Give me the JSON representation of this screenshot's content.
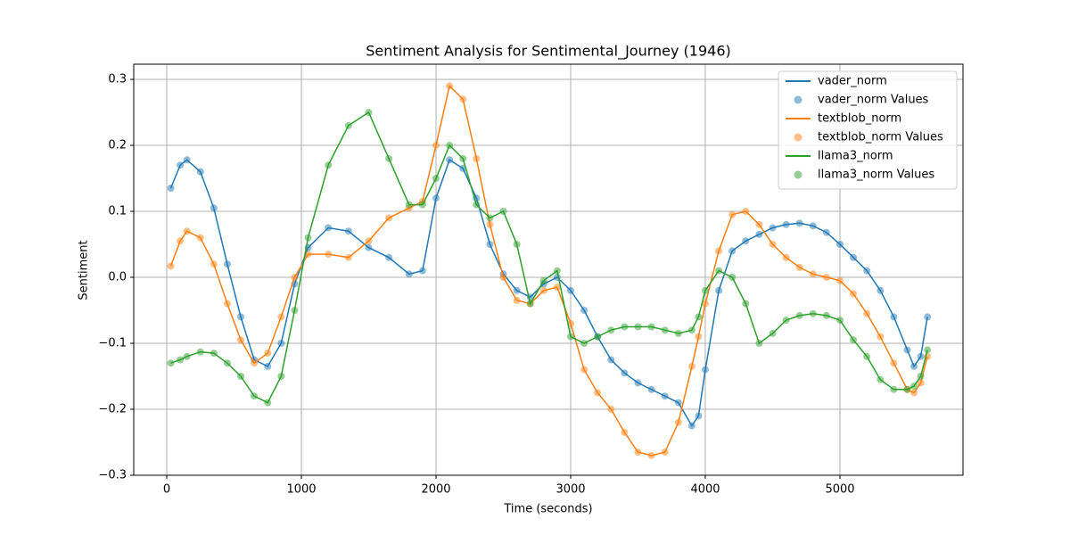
{
  "chart_data": {
    "type": "line",
    "title": "Sentiment Analysis for Sentimental_Journey (1946)",
    "x_label": "Time (seconds)",
    "y_label": "Sentiment",
    "x": [
      30,
      100,
      150,
      250,
      350,
      450,
      550,
      650,
      750,
      850,
      950,
      1050,
      1200,
      1350,
      1500,
      1650,
      1800,
      1900,
      2000,
      2100,
      2200,
      2300,
      2400,
      2500,
      2600,
      2700,
      2800,
      2900,
      3000,
      3100,
      3200,
      3300,
      3400,
      3500,
      3600,
      3700,
      3800,
      3900,
      3950,
      4000,
      4100,
      4200,
      4300,
      4400,
      4500,
      4600,
      4700,
      4800,
      4900,
      5000,
      5100,
      5200,
      5300,
      5400,
      5500,
      5550,
      5600,
      5650
    ],
    "series": [
      {
        "name": "vader_norm",
        "scatter_label": "vader_norm Values",
        "color": "#1f77b4",
        "values": [
          0.135,
          0.17,
          0.178,
          0.16,
          0.105,
          0.02,
          -0.06,
          -0.125,
          -0.135,
          -0.1,
          -0.01,
          0.045,
          0.075,
          0.07,
          0.045,
          0.03,
          0.005,
          0.01,
          0.12,
          0.178,
          0.165,
          0.12,
          0.05,
          0.005,
          -0.02,
          -0.03,
          -0.01,
          0.0,
          -0.02,
          -0.05,
          -0.09,
          -0.125,
          -0.145,
          -0.16,
          -0.17,
          -0.18,
          -0.19,
          -0.225,
          -0.21,
          -0.14,
          -0.02,
          0.04,
          0.055,
          0.065,
          0.075,
          0.08,
          0.082,
          0.078,
          0.068,
          0.05,
          0.03,
          0.01,
          -0.02,
          -0.06,
          -0.11,
          -0.135,
          -0.12,
          -0.06
        ]
      },
      {
        "name": "textblob_norm",
        "scatter_label": "textblob_norm Values",
        "color": "#ff7f0e",
        "values": [
          0.017,
          0.055,
          0.07,
          0.06,
          0.02,
          -0.04,
          -0.095,
          -0.13,
          -0.115,
          -0.06,
          0.0,
          0.035,
          0.035,
          0.03,
          0.055,
          0.09,
          0.105,
          0.115,
          0.2,
          0.29,
          0.27,
          0.18,
          0.08,
          0.0,
          -0.035,
          -0.04,
          -0.02,
          -0.015,
          -0.07,
          -0.14,
          -0.175,
          -0.2,
          -0.235,
          -0.265,
          -0.27,
          -0.265,
          -0.22,
          -0.135,
          -0.09,
          -0.04,
          0.04,
          0.095,
          0.1,
          0.08,
          0.05,
          0.03,
          0.015,
          0.005,
          0.0,
          -0.005,
          -0.025,
          -0.055,
          -0.09,
          -0.13,
          -0.17,
          -0.175,
          -0.16,
          -0.12
        ]
      },
      {
        "name": "llama3_norm",
        "scatter_label": "llama3_norm Values",
        "color": "#2ca02c",
        "values": [
          -0.13,
          -0.125,
          -0.12,
          -0.113,
          -0.115,
          -0.13,
          -0.15,
          -0.18,
          -0.19,
          -0.15,
          -0.05,
          0.06,
          0.17,
          0.23,
          0.25,
          0.18,
          0.11,
          0.11,
          0.15,
          0.2,
          0.18,
          0.11,
          0.09,
          0.1,
          0.05,
          -0.04,
          -0.005,
          0.01,
          -0.09,
          -0.1,
          -0.09,
          -0.08,
          -0.075,
          -0.075,
          -0.075,
          -0.08,
          -0.085,
          -0.08,
          -0.06,
          -0.02,
          0.01,
          0.0,
          -0.04,
          -0.1,
          -0.085,
          -0.065,
          -0.058,
          -0.055,
          -0.058,
          -0.065,
          -0.095,
          -0.12,
          -0.155,
          -0.17,
          -0.17,
          -0.165,
          -0.15,
          -0.11
        ]
      }
    ],
    "xlim": [
      -245,
      5914
    ],
    "ylim": [
      -0.3,
      0.323
    ],
    "xticks": [
      0,
      1000,
      2000,
      3000,
      4000,
      5000
    ],
    "yticks": [
      {
        "value": -0.3,
        "label": "−0.3"
      },
      {
        "value": -0.2,
        "label": "−0.2"
      },
      {
        "value": -0.1,
        "label": "−0.1"
      },
      {
        "value": 0,
        "label": "0.0"
      },
      0.1,
      0.2,
      0.3
    ],
    "grid": true,
    "legend": "upper right"
  }
}
